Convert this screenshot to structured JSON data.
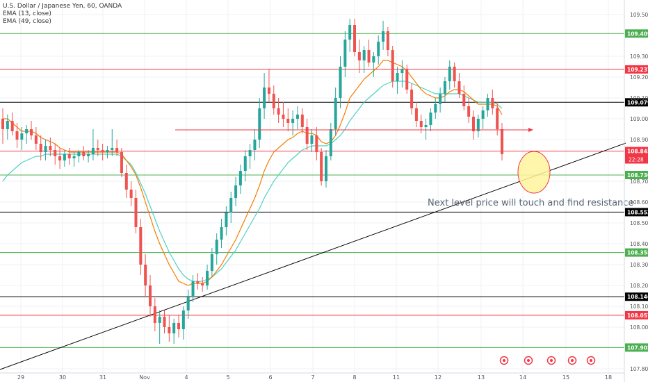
{
  "legend": {
    "symbol": "U.S. Dollar / Japanese Yen, 60, OANDA",
    "ema1": "EMA (13, close)",
    "ema2": "EMA (49, close)"
  },
  "chart_data": {
    "type": "candlestick",
    "ylim": [
      107.78,
      109.57
    ],
    "x_ticks": [
      "29",
      "30",
      "31",
      "Nov",
      "4",
      "5",
      "6",
      "7",
      "8",
      "11",
      "12",
      "13",
      "14",
      "15",
      "18"
    ],
    "y_ticks": [
      {
        "value": 109.5,
        "label": "109.500"
      },
      {
        "value": 109.3,
        "label": "109.300"
      },
      {
        "value": 109.2,
        "label": "109.200"
      },
      {
        "value": 109.1,
        "label": "109.100"
      },
      {
        "value": 109.0,
        "label": "109.000"
      },
      {
        "value": 108.9,
        "label": "108.900"
      },
      {
        "value": 108.7,
        "label": "108.700"
      },
      {
        "value": 108.6,
        "label": "108.600"
      },
      {
        "value": 108.5,
        "label": "108.500"
      },
      {
        "value": 108.4,
        "label": "108.400"
      },
      {
        "value": 108.3,
        "label": "108.300"
      },
      {
        "value": 108.2,
        "label": "108.200"
      },
      {
        "value": 108.1,
        "label": "108.100"
      },
      {
        "value": 108.0,
        "label": "108.000"
      },
      {
        "value": 107.8,
        "label": "107.800"
      }
    ],
    "levels": [
      {
        "value": 109.409,
        "label": "109.409",
        "color": "#4caf50"
      },
      {
        "value": 109.237,
        "label": "109.237",
        "color": "#f23645"
      },
      {
        "value": 109.079,
        "label": "109.079",
        "color": "#000000"
      },
      {
        "value": 108.845,
        "label": "108.845",
        "color": "#f23645"
      },
      {
        "value": 108.73,
        "label": "108.730",
        "color": "#4caf50"
      },
      {
        "value": 108.552,
        "label": "108.552",
        "color": "#000000"
      },
      {
        "value": 108.358,
        "label": "108.358",
        "color": "#4caf50"
      },
      {
        "value": 108.146,
        "label": "108.146",
        "color": "#000000"
      },
      {
        "value": 108.057,
        "label": "108.057",
        "color": "#f23645"
      },
      {
        "value": 107.902,
        "label": "107.902",
        "color": "#4caf50"
      }
    ],
    "countdown": "22:28",
    "annotation": "Next level price will touch and find resistance",
    "colors": {
      "up": "#26a69a",
      "down": "#ef5350",
      "ema13": "#f57c00",
      "ema49": "#4dd0c1",
      "circle": "#fff59d"
    },
    "candles": [
      [
        109.0,
        109.05,
        108.88,
        108.95
      ],
      [
        108.95,
        109.02,
        108.9,
        108.99
      ],
      [
        108.99,
        109.03,
        108.92,
        108.94
      ],
      [
        108.94,
        108.98,
        108.86,
        108.9
      ],
      [
        108.9,
        108.96,
        108.85,
        108.93
      ],
      [
        108.93,
        108.97,
        108.88,
        108.95
      ],
      [
        108.95,
        108.99,
        108.9,
        108.92
      ],
      [
        108.92,
        108.96,
        108.85,
        108.88
      ],
      [
        108.88,
        108.92,
        108.8,
        108.84
      ],
      [
        108.84,
        108.9,
        108.8,
        108.87
      ],
      [
        108.87,
        108.91,
        108.82,
        108.85
      ],
      [
        108.85,
        108.88,
        108.78,
        108.82
      ],
      [
        108.82,
        108.86,
        108.76,
        108.8
      ],
      [
        108.8,
        108.85,
        108.77,
        108.83
      ],
      [
        108.83,
        108.86,
        108.78,
        108.81
      ],
      [
        108.81,
        108.84,
        108.77,
        108.82
      ],
      [
        108.82,
        108.85,
        108.79,
        108.84
      ],
      [
        108.84,
        108.87,
        108.8,
        108.82
      ],
      [
        108.82,
        108.85,
        108.79,
        108.83
      ],
      [
        108.83,
        108.95,
        108.8,
        108.86
      ],
      [
        108.86,
        108.9,
        108.82,
        108.85
      ],
      [
        108.85,
        108.88,
        108.8,
        108.84
      ],
      [
        108.84,
        108.87,
        108.81,
        108.85
      ],
      [
        108.85,
        108.95,
        108.82,
        108.86
      ],
      [
        108.86,
        108.9,
        108.82,
        108.84
      ],
      [
        108.84,
        108.86,
        108.72,
        108.74
      ],
      [
        108.74,
        108.78,
        108.62,
        108.66
      ],
      [
        108.66,
        108.7,
        108.58,
        108.62
      ],
      [
        108.62,
        108.66,
        108.45,
        108.48
      ],
      [
        108.48,
        108.52,
        108.25,
        108.3
      ],
      [
        108.3,
        108.35,
        108.15,
        108.2
      ],
      [
        108.2,
        108.25,
        108.05,
        108.1
      ],
      [
        108.1,
        108.14,
        107.98,
        108.02
      ],
      [
        108.02,
        108.08,
        107.92,
        108.05
      ],
      [
        108.05,
        108.08,
        107.97,
        108.0
      ],
      [
        108.0,
        108.06,
        107.93,
        107.97
      ],
      [
        107.97,
        108.04,
        107.92,
        108.02
      ],
      [
        108.02,
        108.06,
        107.95,
        107.99
      ],
      [
        107.99,
        108.1,
        107.94,
        108.08
      ],
      [
        108.08,
        108.18,
        108.04,
        108.15
      ],
      [
        108.15,
        108.25,
        108.12,
        108.22
      ],
      [
        108.22,
        108.26,
        108.18,
        108.21
      ],
      [
        108.21,
        108.24,
        108.17,
        108.2
      ],
      [
        108.2,
        108.3,
        108.18,
        108.27
      ],
      [
        108.27,
        108.38,
        108.24,
        108.35
      ],
      [
        108.35,
        108.45,
        108.3,
        108.42
      ],
      [
        108.42,
        108.52,
        108.38,
        108.48
      ],
      [
        108.48,
        108.58,
        108.44,
        108.55
      ],
      [
        108.55,
        108.65,
        108.5,
        108.62
      ],
      [
        108.62,
        108.72,
        108.58,
        108.68
      ],
      [
        108.68,
        108.78,
        108.64,
        108.75
      ],
      [
        108.75,
        108.85,
        108.7,
        108.82
      ],
      [
        108.82,
        108.88,
        108.76,
        108.85
      ],
      [
        108.85,
        108.95,
        108.8,
        108.9
      ],
      [
        108.9,
        109.1,
        108.86,
        109.05
      ],
      [
        109.05,
        109.22,
        109.0,
        109.15
      ],
      [
        109.15,
        109.24,
        109.08,
        109.12
      ],
      [
        109.12,
        109.16,
        109.02,
        109.05
      ],
      [
        109.05,
        109.1,
        108.98,
        109.02
      ],
      [
        109.02,
        109.08,
        108.96,
        109.0
      ],
      [
        109.0,
        109.05,
        108.94,
        108.98
      ],
      [
        108.98,
        109.04,
        108.92,
        109.0
      ],
      [
        109.0,
        109.06,
        108.95,
        109.02
      ],
      [
        109.02,
        109.05,
        108.93,
        108.96
      ],
      [
        108.96,
        109.0,
        108.85,
        108.88
      ],
      [
        108.88,
        108.95,
        108.84,
        108.92
      ],
      [
        108.92,
        108.96,
        108.8,
        108.84
      ],
      [
        108.84,
        108.86,
        108.68,
        108.7
      ],
      [
        108.7,
        108.85,
        108.67,
        108.82
      ],
      [
        108.82,
        108.98,
        108.8,
        108.95
      ],
      [
        108.95,
        109.15,
        108.92,
        109.1
      ],
      [
        109.1,
        109.3,
        109.05,
        109.25
      ],
      [
        109.25,
        109.42,
        109.2,
        109.38
      ],
      [
        109.38,
        109.48,
        109.32,
        109.45
      ],
      [
        109.45,
        109.48,
        109.3,
        109.32
      ],
      [
        109.32,
        109.38,
        109.22,
        109.28
      ],
      [
        109.28,
        109.35,
        109.22,
        109.33
      ],
      [
        109.33,
        109.38,
        109.25,
        109.27
      ],
      [
        109.27,
        109.32,
        109.2,
        109.3
      ],
      [
        109.3,
        109.4,
        109.26,
        109.37
      ],
      [
        109.37,
        109.47,
        109.33,
        109.42
      ],
      [
        109.42,
        109.44,
        109.3,
        109.33
      ],
      [
        109.33,
        109.35,
        109.15,
        109.18
      ],
      [
        109.18,
        109.25,
        109.12,
        109.22
      ],
      [
        109.22,
        109.28,
        109.15,
        109.24
      ],
      [
        109.24,
        109.26,
        109.12,
        109.14
      ],
      [
        109.14,
        109.17,
        109.02,
        109.05
      ],
      [
        109.05,
        109.08,
        108.96,
        108.99
      ],
      [
        108.99,
        109.02,
        108.93,
        108.96
      ],
      [
        108.96,
        109.0,
        108.9,
        108.97
      ],
      [
        108.97,
        109.05,
        108.94,
        109.03
      ],
      [
        109.03,
        109.1,
        109.0,
        109.07
      ],
      [
        109.07,
        109.15,
        109.03,
        109.12
      ],
      [
        109.12,
        109.2,
        109.08,
        109.18
      ],
      [
        109.18,
        109.28,
        109.14,
        109.25
      ],
      [
        109.25,
        109.27,
        109.15,
        109.18
      ],
      [
        109.18,
        109.22,
        109.1,
        109.12
      ],
      [
        109.12,
        109.16,
        109.04,
        109.06
      ],
      [
        109.06,
        109.1,
        108.98,
        109.01
      ],
      [
        109.01,
        109.04,
        108.9,
        108.94
      ],
      [
        108.94,
        109.02,
        108.91,
        109.0
      ],
      [
        109.0,
        109.06,
        108.95,
        109.04
      ],
      [
        109.04,
        109.12,
        109.01,
        109.1
      ],
      [
        109.1,
        109.14,
        109.02,
        109.05
      ],
      [
        109.05,
        109.08,
        108.92,
        108.95
      ],
      [
        108.95,
        108.98,
        108.8,
        108.83
      ]
    ],
    "ema13": [
      109.0,
      109.0,
      108.98,
      108.96,
      108.94,
      108.94,
      108.94,
      108.93,
      108.91,
      108.9,
      108.89,
      108.88,
      108.86,
      108.85,
      108.84,
      108.84,
      108.84,
      108.84,
      108.84,
      108.84,
      108.84,
      108.84,
      108.84,
      108.84,
      108.84,
      108.83,
      108.8,
      108.77,
      108.73,
      108.67,
      108.6,
      108.53,
      108.46,
      108.4,
      108.35,
      108.3,
      108.26,
      108.22,
      108.21,
      108.2,
      108.21,
      108.21,
      108.21,
      108.22,
      108.24,
      108.27,
      108.3,
      108.34,
      108.38,
      108.42,
      108.47,
      108.52,
      108.57,
      108.62,
      108.68,
      108.75,
      108.8,
      108.84,
      108.86,
      108.88,
      108.9,
      108.91,
      108.93,
      108.94,
      108.93,
      108.93,
      108.92,
      108.89,
      108.88,
      108.89,
      108.92,
      108.97,
      109.03,
      109.1,
      109.13,
      109.16,
      109.19,
      109.21,
      109.23,
      109.25,
      109.28,
      109.28,
      109.27,
      109.26,
      109.25,
      109.23,
      109.2,
      109.17,
      109.14,
      109.12,
      109.11,
      109.1,
      109.1,
      109.11,
      109.13,
      109.14,
      109.14,
      109.13,
      109.11,
      109.09,
      109.07,
      109.07,
      109.07,
      109.07,
      109.06,
      109.02
    ],
    "ema49": [
      108.7,
      108.73,
      108.75,
      108.77,
      108.79,
      108.8,
      108.81,
      108.82,
      108.82,
      108.83,
      108.83,
      108.83,
      108.83,
      108.83,
      108.83,
      108.83,
      108.83,
      108.83,
      108.83,
      108.83,
      108.83,
      108.83,
      108.83,
      108.83,
      108.83,
      108.82,
      108.8,
      108.78,
      108.74,
      108.69,
      108.64,
      108.58,
      108.52,
      108.46,
      108.41,
      108.36,
      108.32,
      108.28,
      108.25,
      108.23,
      108.22,
      108.22,
      108.22,
      108.23,
      108.24,
      108.26,
      108.28,
      108.31,
      108.34,
      108.37,
      108.41,
      108.45,
      108.49,
      108.53,
      108.57,
      108.62,
      108.66,
      108.7,
      108.73,
      108.76,
      108.79,
      108.81,
      108.83,
      108.85,
      108.86,
      108.87,
      108.87,
      108.87,
      108.87,
      108.88,
      108.9,
      108.92,
      108.95,
      108.99,
      109.02,
      109.05,
      109.08,
      109.1,
      109.12,
      109.14,
      109.16,
      109.17,
      109.18,
      109.18,
      109.18,
      109.18,
      109.17,
      109.16,
      109.15,
      109.14,
      109.13,
      109.12,
      109.12,
      109.12,
      109.12,
      109.12,
      109.12,
      109.11,
      109.1,
      109.09,
      109.08,
      109.08,
      109.08,
      109.08,
      109.07,
      109.05
    ]
  }
}
